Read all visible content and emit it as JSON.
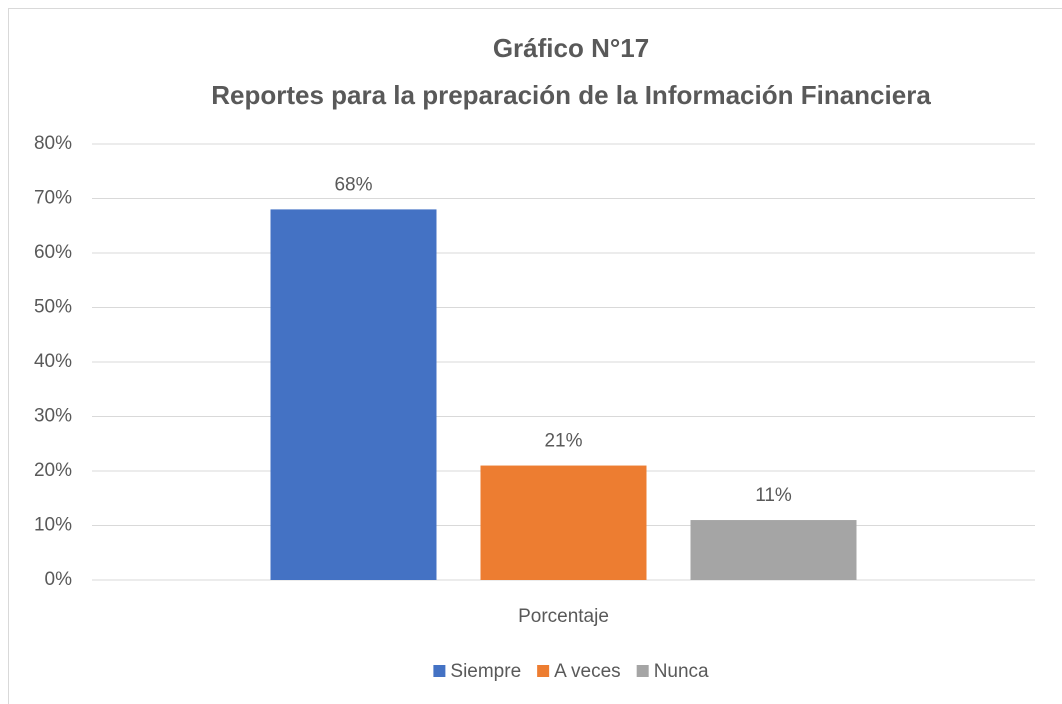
{
  "chart_data": {
    "type": "bar",
    "title": "Gráfico N°17",
    "subtitle": "Reportes para la preparación de la Información Financiera",
    "categories": [
      "Porcentaje"
    ],
    "series": [
      {
        "name": "Siempre",
        "color": "#4472c4",
        "values": [
          68
        ],
        "value_labels": [
          "68%"
        ]
      },
      {
        "name": "A veces",
        "color": "#ed7d31",
        "values": [
          21
        ],
        "value_labels": [
          "21%"
        ]
      },
      {
        "name": "Nunca",
        "color": "#a5a5a5",
        "values": [
          11
        ],
        "value_labels": [
          "11%"
        ]
      }
    ],
    "ylim": [
      0,
      80
    ],
    "yticks": [
      {
        "value": 0,
        "label": "0%"
      },
      {
        "value": 10,
        "label": "10%"
      },
      {
        "value": 20,
        "label": "20%"
      },
      {
        "value": 30,
        "label": "30%"
      },
      {
        "value": 40,
        "label": "40%"
      },
      {
        "value": 50,
        "label": "50%"
      },
      {
        "value": 60,
        "label": "60%"
      },
      {
        "value": 70,
        "label": "70%"
      },
      {
        "value": 80,
        "label": "80%"
      }
    ],
    "grid": true,
    "legend": "bottom"
  }
}
